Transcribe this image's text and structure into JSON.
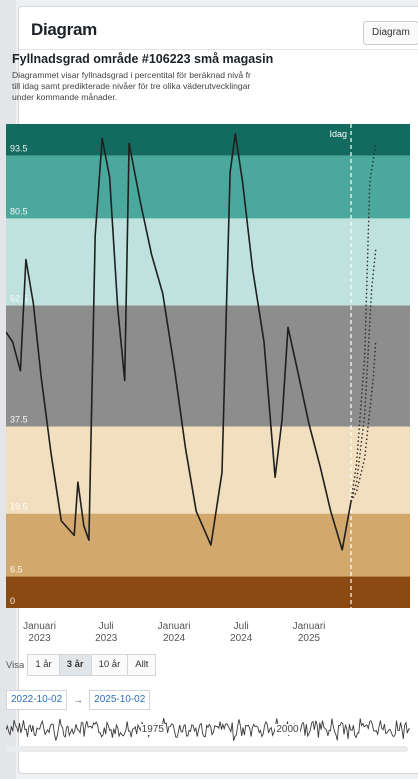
{
  "header": {
    "title": "Diagram",
    "button_label": "Diagram"
  },
  "subtitle": "Fyllnadsgrad område #106223 små magasin",
  "description": [
    "Diagrammet visar fyllnadsgrad i percentital för beräknad nivå fr",
    "till idag samt predikterade nivåer för tre olika väderutvecklingar",
    "under kommande månader."
  ],
  "chart_data": {
    "type": "line",
    "title": "",
    "ylim": [
      0,
      100
    ],
    "xlim": [
      "2022-10-02",
      "2025-10-02"
    ],
    "today": "2025-04-25",
    "today_label": "Idag",
    "bands": [
      {
        "from": 0,
        "to": 6.5,
        "color": "#8a4a12",
        "label": "0"
      },
      {
        "from": 6.5,
        "to": 19.5,
        "color": "#d3a86c",
        "label": "6.5"
      },
      {
        "from": 19.5,
        "to": 37.5,
        "color": "#f2dfbf",
        "label": "19.5"
      },
      {
        "from": 37.5,
        "to": 62.5,
        "color": "#8d8d8d",
        "label": "37.5"
      },
      {
        "from": 62.5,
        "to": 80.5,
        "color": "#bfe2de",
        "label": "62.5"
      },
      {
        "from": 80.5,
        "to": 93.5,
        "color": "#4ba89c",
        "label": "80.5"
      },
      {
        "from": 93.5,
        "to": 100,
        "color": "#136a5f",
        "label": "93.5"
      }
    ],
    "x_tick_labels": [
      {
        "date": "2023-01-01",
        "label": "Januari",
        "sub": "2023"
      },
      {
        "date": "2023-07-01",
        "label": "Juli",
        "sub": "2023"
      },
      {
        "date": "2024-01-01",
        "label": "Januari",
        "sub": "2024"
      },
      {
        "date": "2024-07-01",
        "label": "Juli",
        "sub": "2024"
      },
      {
        "date": "2025-01-01",
        "label": "Januari",
        "sub": "2025"
      }
    ],
    "series": [
      {
        "style": "solid",
        "color": "#1f1f1f",
        "points": [
          [
            "2022-10-02",
            57
          ],
          [
            "2022-10-20",
            55
          ],
          [
            "2022-11-10",
            49
          ],
          [
            "2022-11-25",
            72
          ],
          [
            "2022-12-15",
            63
          ],
          [
            "2023-01-05",
            48
          ],
          [
            "2023-02-01",
            32
          ],
          [
            "2023-03-01",
            18
          ],
          [
            "2023-04-05",
            15
          ],
          [
            "2023-04-15",
            26
          ],
          [
            "2023-05-01",
            17
          ],
          [
            "2023-05-15",
            14
          ],
          [
            "2023-06-01",
            77
          ],
          [
            "2023-06-20",
            97
          ],
          [
            "2023-07-10",
            89
          ],
          [
            "2023-08-01",
            62
          ],
          [
            "2023-08-20",
            47
          ],
          [
            "2023-09-01",
            96
          ],
          [
            "2023-10-01",
            84
          ],
          [
            "2023-11-01",
            73
          ],
          [
            "2023-12-01",
            65
          ],
          [
            "2024-01-01",
            50
          ],
          [
            "2024-02-01",
            33
          ],
          [
            "2024-03-01",
            20
          ],
          [
            "2024-04-10",
            13
          ],
          [
            "2024-05-10",
            28
          ],
          [
            "2024-06-01",
            90
          ],
          [
            "2024-06-15",
            98
          ],
          [
            "2024-07-05",
            88
          ],
          [
            "2024-08-01",
            70
          ],
          [
            "2024-09-01",
            55
          ],
          [
            "2024-10-01",
            27
          ],
          [
            "2024-10-20",
            39
          ],
          [
            "2024-11-05",
            58
          ],
          [
            "2024-12-01",
            49
          ],
          [
            "2025-01-01",
            38
          ],
          [
            "2025-02-01",
            29
          ],
          [
            "2025-03-01",
            20
          ],
          [
            "2025-04-01",
            12
          ],
          [
            "2025-04-25",
            22
          ]
        ]
      },
      {
        "style": "dotted",
        "color": "#2b2b2b",
        "points": [
          [
            "2025-04-25",
            22
          ],
          [
            "2025-05-10",
            30
          ],
          [
            "2025-06-01",
            52
          ],
          [
            "2025-06-15",
            88
          ],
          [
            "2025-07-01",
            96
          ]
        ]
      },
      {
        "style": "dotted",
        "color": "#2b2b2b",
        "points": [
          [
            "2025-04-25",
            22
          ],
          [
            "2025-05-10",
            26
          ],
          [
            "2025-06-01",
            40
          ],
          [
            "2025-06-20",
            66
          ],
          [
            "2025-07-01",
            74
          ]
        ]
      },
      {
        "style": "dotted",
        "color": "#2b2b2b",
        "points": [
          [
            "2025-04-25",
            22
          ],
          [
            "2025-05-10",
            24
          ],
          [
            "2025-06-01",
            31
          ],
          [
            "2025-06-25",
            48
          ],
          [
            "2025-07-01",
            55
          ]
        ]
      }
    ]
  },
  "range_selector": {
    "label": "Visa",
    "buttons": [
      "1 år",
      "3 år",
      "10 år",
      "Allt"
    ],
    "selected": "3 år"
  },
  "date_range": {
    "from": "2022-10-02",
    "to": "2025-10-02",
    "separator": "→"
  },
  "navigator": {
    "labels": [
      "1975",
      "2000"
    ],
    "start_year": 1950,
    "end_year": 2025
  }
}
